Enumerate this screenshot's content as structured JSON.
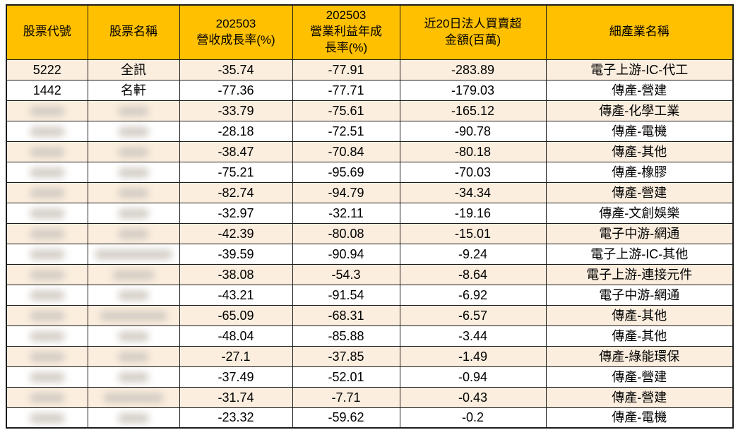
{
  "colors": {
    "header_bg": "#FFC000",
    "row_alt_bg": "#FBEEDE",
    "row_bg": "#FFFFFF",
    "border": "#1C1C1C",
    "text": "#000000"
  },
  "table": {
    "columns": [
      {
        "label": "股票代號"
      },
      {
        "label": "股票名稱"
      },
      {
        "label": "202503\n營收成長率(%)"
      },
      {
        "label": "202503\n營業利益年成\n長率(%)"
      },
      {
        "label": "近20日法人買賣超\n金額(百萬)"
      },
      {
        "label": "細產業名稱"
      }
    ],
    "rows": [
      {
        "code": "5222",
        "name": "全訊",
        "revenue_growth": "-35.74",
        "op_profit_growth": "-77.91",
        "net_buy": "-283.89",
        "industry": "電子上游-IC-代工",
        "redacted": false
      },
      {
        "code": "1442",
        "name": "名軒",
        "revenue_growth": "-77.36",
        "op_profit_growth": "-77.71",
        "net_buy": "-179.03",
        "industry": "傳產-營建",
        "redacted": false
      },
      {
        "code": "",
        "name": "",
        "revenue_growth": "-33.79",
        "op_profit_growth": "-75.61",
        "net_buy": "-165.12",
        "industry": "傳產-化學工業",
        "redacted": true
      },
      {
        "code": "",
        "name": "",
        "revenue_growth": "-28.18",
        "op_profit_growth": "-72.51",
        "net_buy": "-90.78",
        "industry": "傳產-電機",
        "redacted": true
      },
      {
        "code": "",
        "name": "",
        "revenue_growth": "-38.47",
        "op_profit_growth": "-70.84",
        "net_buy": "-80.18",
        "industry": "傳產-其他",
        "redacted": true
      },
      {
        "code": "",
        "name": "",
        "revenue_growth": "-75.21",
        "op_profit_growth": "-95.69",
        "net_buy": "-70.03",
        "industry": "傳產-橡膠",
        "redacted": true
      },
      {
        "code": "",
        "name": "",
        "revenue_growth": "-82.74",
        "op_profit_growth": "-94.79",
        "net_buy": "-34.34",
        "industry": "傳產-營建",
        "redacted": true
      },
      {
        "code": "",
        "name": "",
        "revenue_growth": "-32.97",
        "op_profit_growth": "-32.11",
        "net_buy": "-19.16",
        "industry": "傳產-文創娛樂",
        "redacted": true
      },
      {
        "code": "",
        "name": "",
        "revenue_growth": "-42.39",
        "op_profit_growth": "-80.08",
        "net_buy": "-15.01",
        "industry": "電子中游-網通",
        "redacted": true
      },
      {
        "code": "",
        "name": "",
        "revenue_growth": "-39.59",
        "op_profit_growth": "-90.94",
        "net_buy": "-9.24",
        "industry": "電子上游-IC-其他",
        "redacted": true
      },
      {
        "code": "",
        "name": "",
        "revenue_growth": "-38.08",
        "op_profit_growth": "-54.3",
        "net_buy": "-8.64",
        "industry": "電子上游-連接元件",
        "redacted": true
      },
      {
        "code": "",
        "name": "",
        "revenue_growth": "-43.21",
        "op_profit_growth": "-91.54",
        "net_buy": "-6.92",
        "industry": "電子中游-網通",
        "redacted": true
      },
      {
        "code": "",
        "name": "",
        "revenue_growth": "-65.09",
        "op_profit_growth": "-68.31",
        "net_buy": "-6.57",
        "industry": "傳產-其他",
        "redacted": true
      },
      {
        "code": "",
        "name": "",
        "revenue_growth": "-48.04",
        "op_profit_growth": "-85.88",
        "net_buy": "-3.44",
        "industry": "傳產-其他",
        "redacted": true
      },
      {
        "code": "",
        "name": "",
        "revenue_growth": "-27.1",
        "op_profit_growth": "-37.85",
        "net_buy": "-1.49",
        "industry": "傳產-綠能環保",
        "redacted": true
      },
      {
        "code": "",
        "name": "",
        "revenue_growth": "-37.49",
        "op_profit_growth": "-52.01",
        "net_buy": "-0.94",
        "industry": "傳產-營建",
        "redacted": true
      },
      {
        "code": "",
        "name": "",
        "revenue_growth": "-31.74",
        "op_profit_growth": "-7.71",
        "net_buy": "-0.43",
        "industry": "傳產-營建",
        "redacted": true
      },
      {
        "code": "",
        "name": "",
        "revenue_growth": "-23.32",
        "op_profit_growth": "-59.62",
        "net_buy": "-0.2",
        "industry": "傳產-電機",
        "redacted": true
      }
    ]
  },
  "chart_data": {
    "type": "table",
    "title": "",
    "columns": [
      "股票代號",
      "股票名稱",
      "202503 營收成長率(%)",
      "202503 營業利益年成長率(%)",
      "近20日法人買賣超金額(百萬)",
      "細產業名稱"
    ],
    "rows": [
      [
        "5222",
        "全訊",
        -35.74,
        -77.91,
        -283.89,
        "電子上游-IC-代工"
      ],
      [
        "1442",
        "名軒",
        -77.36,
        -77.71,
        -179.03,
        "傳產-營建"
      ],
      [
        null,
        null,
        -33.79,
        -75.61,
        -165.12,
        "傳產-化學工業"
      ],
      [
        null,
        null,
        -28.18,
        -72.51,
        -90.78,
        "傳產-電機"
      ],
      [
        null,
        null,
        -38.47,
        -70.84,
        -80.18,
        "傳產-其他"
      ],
      [
        null,
        null,
        -75.21,
        -95.69,
        -70.03,
        "傳產-橡膠"
      ],
      [
        null,
        null,
        -82.74,
        -94.79,
        -34.34,
        "傳產-營建"
      ],
      [
        null,
        null,
        -32.97,
        -32.11,
        -19.16,
        "傳產-文創娛樂"
      ],
      [
        null,
        null,
        -42.39,
        -80.08,
        -15.01,
        "電子中游-網通"
      ],
      [
        null,
        null,
        -39.59,
        -90.94,
        -9.24,
        "電子上游-IC-其他"
      ],
      [
        null,
        null,
        -38.08,
        -54.3,
        -8.64,
        "電子上游-連接元件"
      ],
      [
        null,
        null,
        -43.21,
        -91.54,
        -6.92,
        "電子中游-網通"
      ],
      [
        null,
        null,
        -65.09,
        -68.31,
        -6.57,
        "傳產-其他"
      ],
      [
        null,
        null,
        -48.04,
        -85.88,
        -3.44,
        "傳產-其他"
      ],
      [
        null,
        null,
        -27.1,
        -37.85,
        -1.49,
        "傳產-綠能環保"
      ],
      [
        null,
        null,
        -37.49,
        -52.01,
        -0.94,
        "傳產-營建"
      ],
      [
        null,
        null,
        -31.74,
        -7.71,
        -0.43,
        "傳產-營建"
      ],
      [
        null,
        null,
        -23.32,
        -59.62,
        -0.2,
        "傳產-電機"
      ]
    ],
    "notes": "Stock codes and names in rows 3-18 are blurred/redacted in the source image."
  }
}
